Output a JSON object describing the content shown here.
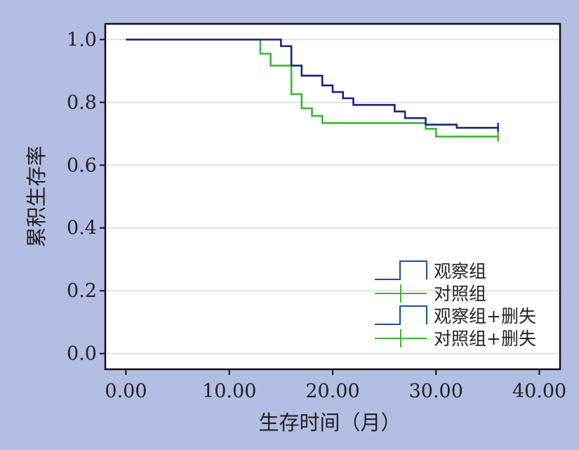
{
  "chart_data": {
    "type": "line",
    "subtype": "kaplan-meier step",
    "xlabel": "生存时间（月）",
    "ylabel": "累积生存率",
    "xlim": [
      -2,
      42
    ],
    "ylim": [
      -0.05,
      1.05
    ],
    "x_ticks": [
      "0.00",
      "10.00",
      "20.00",
      "30.00",
      "40.00"
    ],
    "x_tick_values": [
      0,
      10,
      20,
      30,
      40
    ],
    "y_ticks": [
      "0.0",
      "0.2",
      "0.4",
      "0.6",
      "0.8",
      "1.0"
    ],
    "y_tick_values": [
      0,
      0.2,
      0.4,
      0.6,
      0.8,
      1.0
    ],
    "grid": "horizontal",
    "legend_position": "lower-right",
    "legend": [
      "观察组",
      "对照组",
      "观察组+删失",
      "对照组+删失"
    ],
    "series": [
      {
        "name": "观察组",
        "color": "#1a237e",
        "x": [
          0,
          15.0,
          16.0,
          17.0,
          19.0,
          20.0,
          21.0,
          22.0,
          26.0,
          27.0,
          29.0,
          32.0,
          36.0
        ],
        "y": [
          1.0,
          0.979,
          0.917,
          0.885,
          0.854,
          0.833,
          0.813,
          0.792,
          0.771,
          0.75,
          0.729,
          0.719,
          0.719
        ]
      },
      {
        "name": "对照组",
        "color": "#3cb534",
        "x": [
          0,
          13.0,
          14.0,
          16.0,
          17.0,
          18.0,
          19.0,
          29.0,
          30.0,
          36.0
        ],
        "y": [
          1.0,
          0.955,
          0.917,
          0.826,
          0.781,
          0.757,
          0.734,
          0.716,
          0.691,
          0.691
        ]
      }
    ],
    "censored": [
      {
        "series": "观察组+删失",
        "color": "#1a237e",
        "x": 36.0,
        "y": 0.719
      },
      {
        "series": "对照组+删失",
        "color": "#3cb534",
        "x": 36.0,
        "y": 0.691
      }
    ]
  },
  "legend_items": [
    {
      "label": "观察组",
      "color": "#1f4e94",
      "style": "step"
    },
    {
      "label": "对照组",
      "color": "#3cb534",
      "style": "cross"
    },
    {
      "label": "观察组+删失",
      "color": "#1f4e94",
      "style": "step"
    },
    {
      "label": "对照组+删失",
      "color": "#3cb534",
      "style": "cross"
    }
  ]
}
